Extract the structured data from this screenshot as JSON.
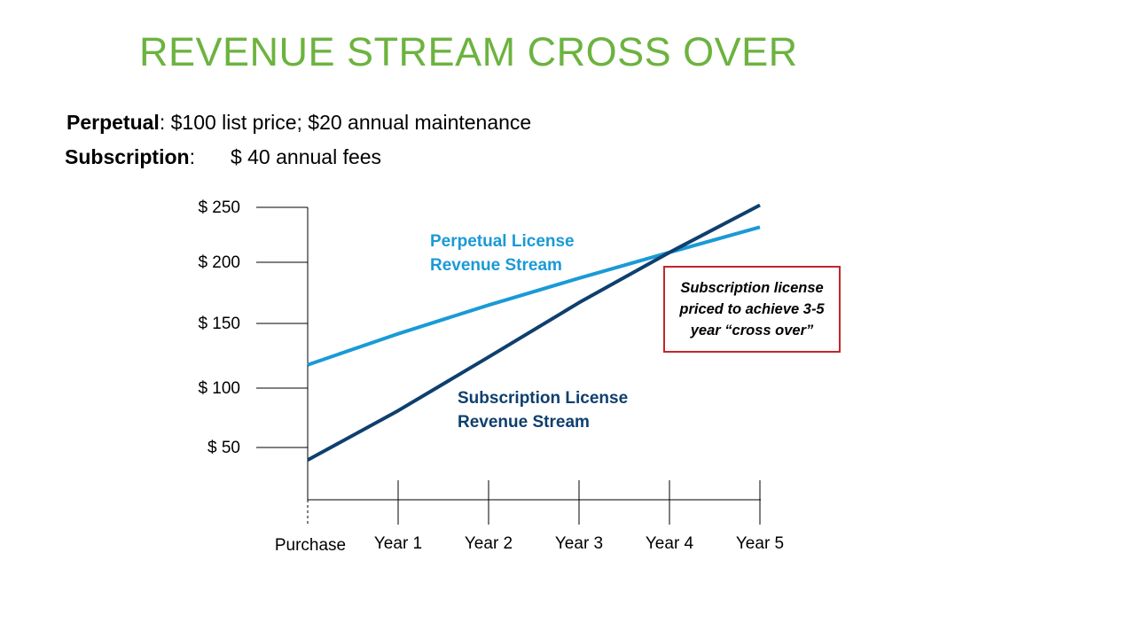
{
  "slide": {
    "title": "REVENUE STREAM CROSS OVER",
    "perpetual_label": "Perpetual",
    "perpetual_text": ": $100 list price; $20 annual maintenance",
    "subscription_label": "Subscription",
    "subscription_colon": ":",
    "subscription_text": "$  40 annual fees"
  },
  "callout": {
    "text": "Subscription license priced to achieve 3-5 year “cross over”"
  },
  "chart_data": {
    "type": "line",
    "title": "",
    "xlabel": "",
    "ylabel": "",
    "categories": [
      "Purchase",
      "Year 1",
      "Year 2",
      "Year 3",
      "Year 4",
      "Year 5"
    ],
    "y_ticks": [
      {
        "value": 50,
        "label": "$  50"
      },
      {
        "value": 100,
        "label": "$ 100"
      },
      {
        "value": 150,
        "label": "$ 150"
      },
      {
        "value": 200,
        "label": "$ 200"
      },
      {
        "value": 250,
        "label": "$ 250"
      }
    ],
    "ylim": [
      0,
      250
    ],
    "grid": false,
    "series": [
      {
        "name": "Perpetual License Revenue Stream",
        "name_lines": [
          "Perpetual License",
          "Revenue Stream"
        ],
        "color": "#1a9ad6",
        "values": [
          118,
          142,
          165,
          187,
          209,
          232
        ]
      },
      {
        "name": "Subscription License Revenue Stream",
        "name_lines": [
          "Subscription License",
          "Revenue Stream"
        ],
        "color": "#0e3f6e",
        "values": [
          38,
          81,
          124,
          167,
          209,
          252
        ]
      }
    ]
  }
}
